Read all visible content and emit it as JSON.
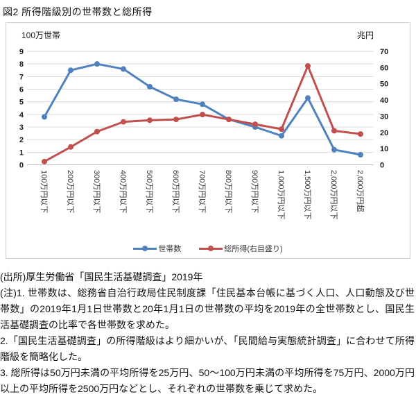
{
  "title": "図2 所得階級別の世帯数と総所得",
  "chart_data": {
    "type": "line",
    "title": "図2 所得階級別の世帯数と総所得",
    "categories": [
      "100万円以下",
      "200万円以下",
      "300万円以下",
      "400万円以下",
      "500万円以下",
      "600万円以下",
      "700万円以下",
      "800万円以下",
      "900万円以下",
      "1,000万円以下",
      "1,500万円以下",
      "2,000万円以下",
      "2,000万円超"
    ],
    "series": [
      {
        "name": "世帯数",
        "axis": "left",
        "color": "#4F81BD",
        "marker": "circle",
        "values": [
          3.8,
          7.5,
          8.0,
          7.6,
          6.2,
          5.2,
          4.8,
          3.6,
          3.0,
          2.3,
          5.3,
          1.2,
          0.8
        ]
      },
      {
        "name": "総所得(右目盛り)",
        "axis": "right",
        "color": "#C0504D",
        "marker": "circle",
        "values": [
          2,
          11,
          20.5,
          26.5,
          27.5,
          28,
          31,
          28,
          25,
          22,
          61,
          21,
          19
        ]
      }
    ],
    "left_axis": {
      "unit": "100万世帯",
      "min": 0,
      "max": 9,
      "step": 1
    },
    "right_axis": {
      "unit": "兆円",
      "min": 0,
      "max": 70,
      "step": 10
    },
    "grid": true,
    "legend_position": "bottom",
    "colors": {
      "gridline": "#d9d9d9",
      "axis_line": "#bfbfbf",
      "tick_text": "#1a1a1a",
      "category_text": "#333333"
    }
  },
  "notes": {
    "source": "(出所)厚生労働省「国民生活基礎調査」2019年",
    "note1": "(注)1. 世帯数は、総務省自治行政局住民制度課「住民基本台帳に基づく人口、人口動態及び世帯数」の2019年1月1日世帯数と20年1月1日の世帯数の平均を2019年の全世帯数とし、国民生活基礎調査の比率で各世帯数を求めた。",
    "note2": "2.「国民生活基礎調査」の所得階級はより細かいが、「民間給与実態統計調査」に合わせて所得階級を簡略化した。",
    "note3": "3. 総所得は50万円未満の平均所得を25万円、50〜100万円未満の平均所得を75万円、2000万円以上の平均所得を2500万円などとし、それぞれの世帯数を乗じて求めた。"
  }
}
